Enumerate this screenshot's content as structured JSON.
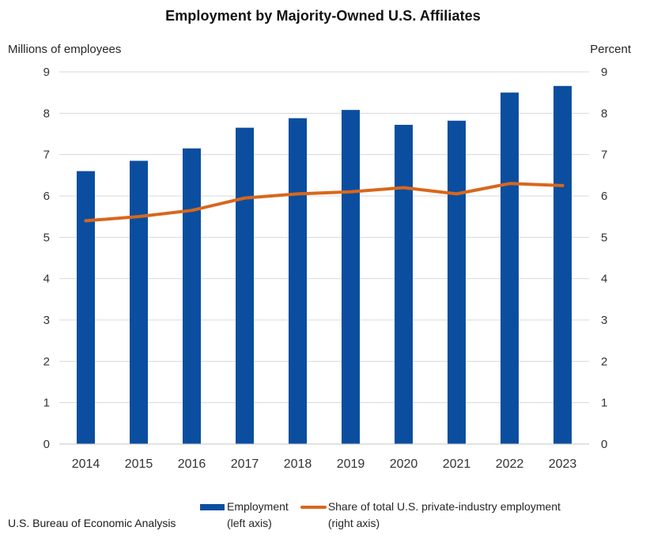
{
  "title": "Employment by Majority-Owned U.S. Affiliates",
  "footer": "U.S. Bureau of Economic Analysis",
  "axes": {
    "left_title": "Millions of employees",
    "right_title": "Percent"
  },
  "legend": [
    {
      "label": "Employment",
      "sublabel": "(left axis)",
      "swatch": "bar"
    },
    {
      "label": "Share of total U.S. private-industry employment",
      "sublabel": "(right axis)",
      "swatch": "line"
    }
  ],
  "colors": {
    "bar": "#0B4E9F",
    "line": "#D8671D",
    "gridline": "#D9D9D9",
    "axis_line": "#C6C6C6",
    "tick_text": "#333333"
  },
  "chart_data": {
    "type": "bar",
    "subtype": "bar-with-line-overlay",
    "title": "Employment by Majority-Owned U.S. Affiliates",
    "categories": [
      "2014",
      "2015",
      "2016",
      "2017",
      "2018",
      "2019",
      "2020",
      "2021",
      "2022",
      "2023"
    ],
    "series": [
      {
        "name": "Employment (left axis)",
        "type": "bar",
        "axis": "left",
        "values": [
          6.6,
          6.85,
          7.15,
          7.65,
          7.88,
          8.08,
          7.72,
          7.82,
          8.5,
          8.66
        ]
      },
      {
        "name": "Share of total U.S. private-industry employment (right axis)",
        "type": "line",
        "axis": "right",
        "values": [
          5.4,
          5.5,
          5.65,
          5.95,
          6.05,
          6.1,
          6.2,
          6.05,
          6.3,
          6.25
        ]
      }
    ],
    "left_axis_label": "Millions of employees",
    "right_axis_label": "Percent",
    "left_ylim": [
      0,
      9
    ],
    "right_ylim": [
      0,
      9
    ],
    "yticks": [
      0,
      1,
      2,
      3,
      4,
      5,
      6,
      7,
      8,
      9
    ],
    "grid": true,
    "legend_position": "bottom"
  }
}
